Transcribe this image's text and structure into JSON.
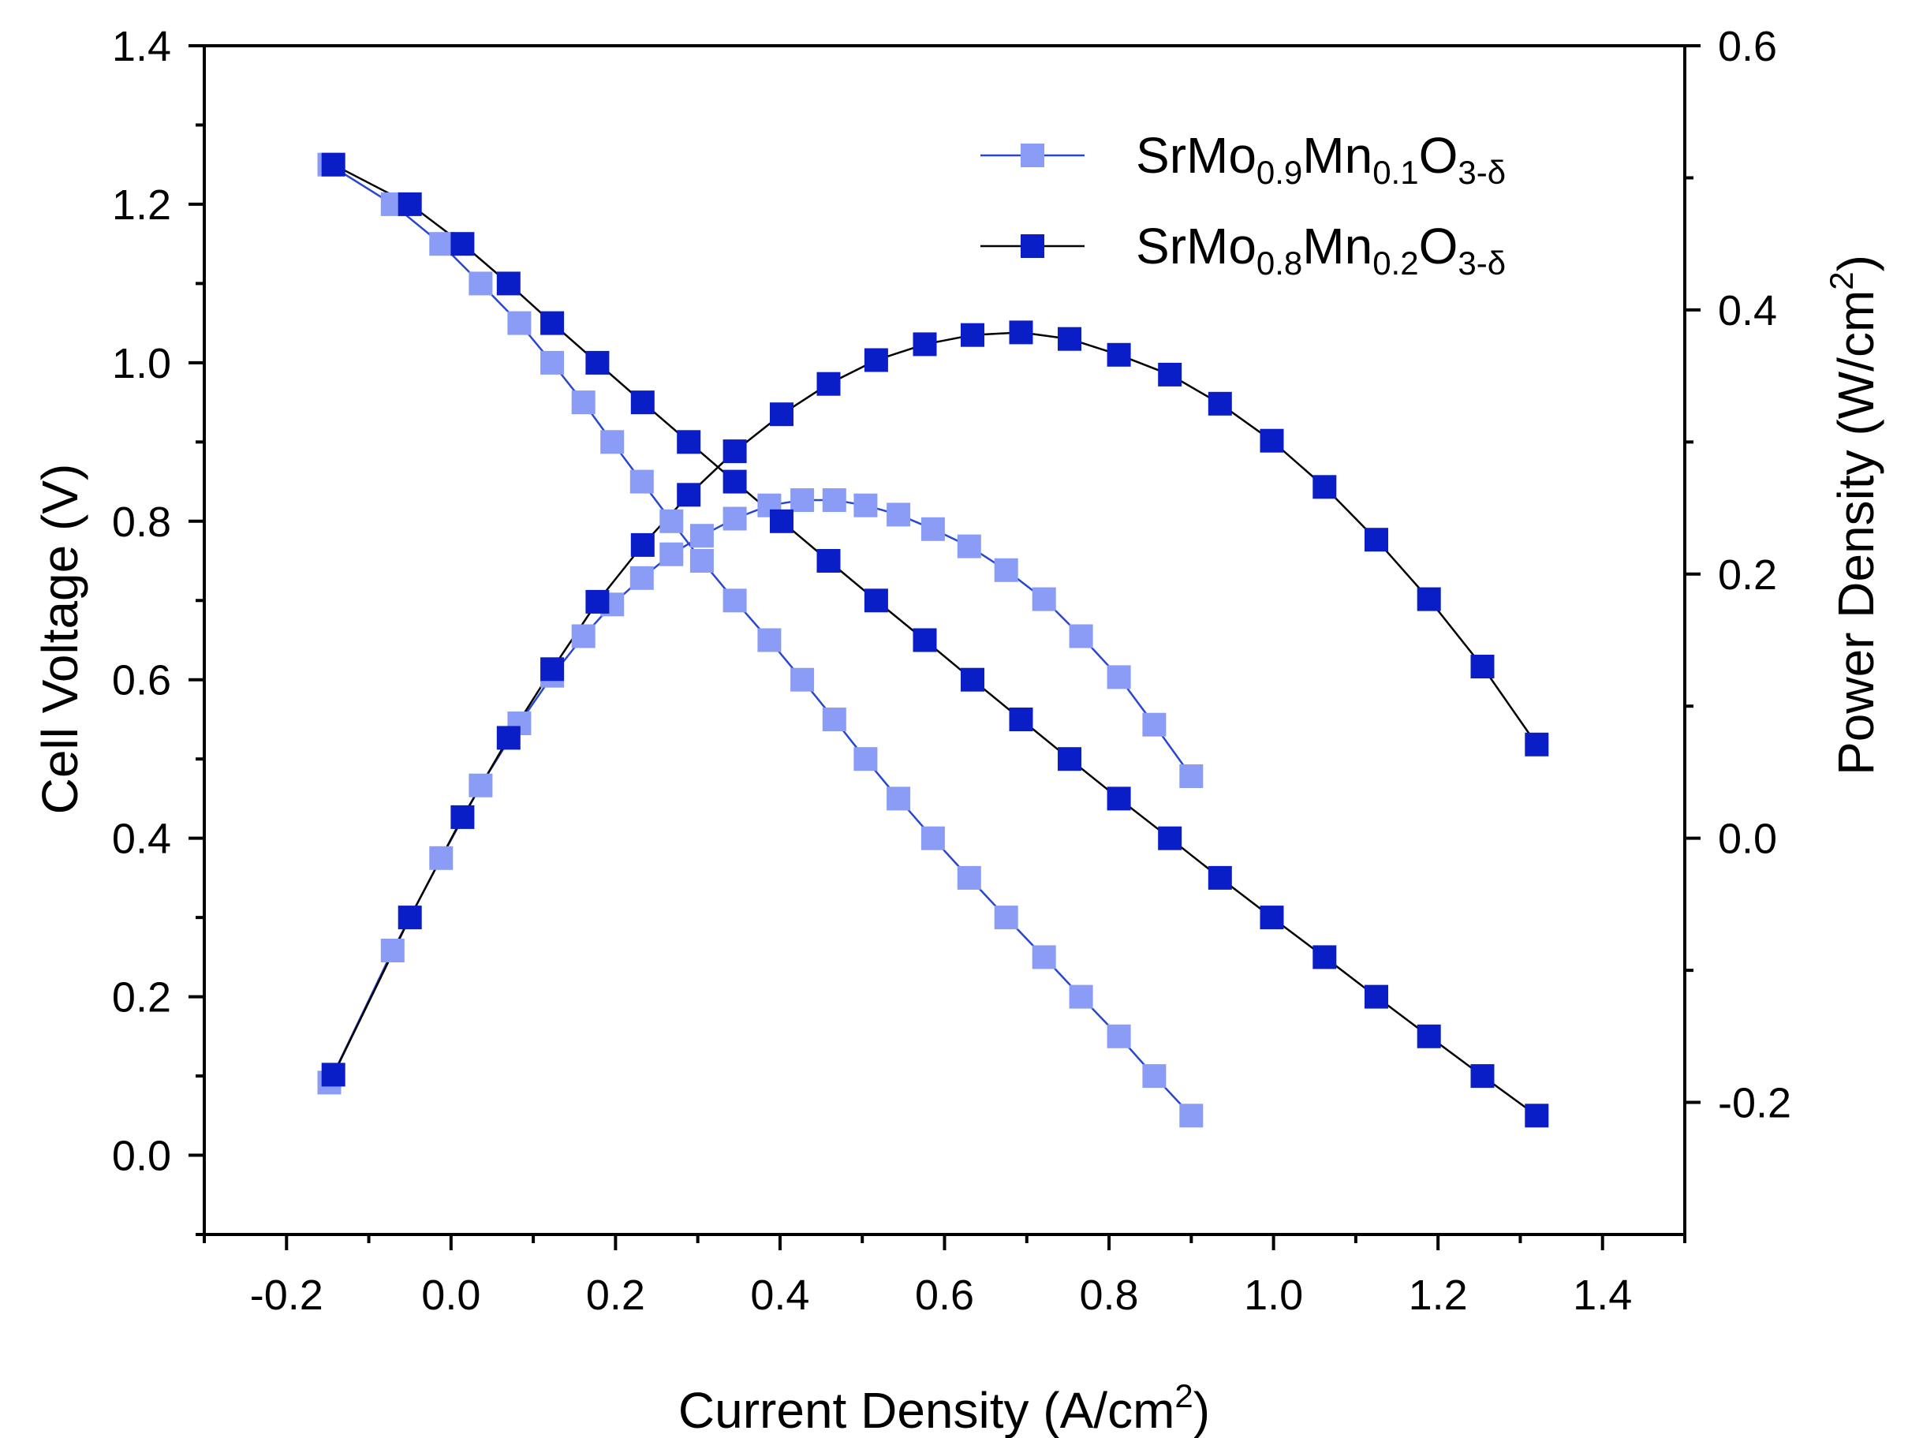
{
  "chart_data": {
    "type": "line",
    "x_label": {
      "main": "Current Density (A/cm",
      "sup": "2",
      "end": ")"
    },
    "y_left_label": "Cell Voltage (V)",
    "y_right_label": {
      "main": "Power Density (W/cm",
      "sup": "2",
      "end": ")"
    },
    "xlim": [
      -0.3,
      1.5
    ],
    "ylim_left": [
      -0.1,
      1.4
    ],
    "ylim_right": [
      -0.3,
      0.6
    ],
    "x_ticks": [
      "-0.2",
      "0.0",
      "0.2",
      "0.4",
      "0.6",
      "0.8",
      "1.0",
      "1.2",
      "1.4"
    ],
    "x_tick_values": [
      -0.2,
      0.0,
      0.2,
      0.4,
      0.6,
      0.8,
      1.0,
      1.2,
      1.4
    ],
    "y_left_ticks": [
      "0.0",
      "0.2",
      "0.4",
      "0.6",
      "0.8",
      "1.0",
      "1.2",
      "1.4"
    ],
    "y_left_tick_values": [
      0.0,
      0.2,
      0.4,
      0.6,
      0.8,
      1.0,
      1.2,
      1.4
    ],
    "y_right_ticks": [
      "-0.2",
      "0.0",
      "0.2",
      "0.4",
      "0.6"
    ],
    "y_right_tick_values": [
      -0.2,
      0.0,
      0.2,
      0.4,
      0.6
    ],
    "legend": [
      {
        "base": "SrMo",
        "s1": "0.9",
        "mid": "Mn",
        "s2": "0.1",
        "end": "O",
        "s3": "3-δ",
        "series_index": 0
      },
      {
        "base": "SrMo",
        "s1": "0.8",
        "mid": "Mn",
        "s2": "0.2",
        "end": "O",
        "s3": "3-δ",
        "series_index": 1
      }
    ],
    "series": [
      {
        "name": "SrMo0.9Mn0.1O3-δ",
        "marker_color": "#8a9cf6",
        "line_color": "#2846d2",
        "voltage": {
          "x": [
            -0.148,
            -0.071,
            -0.012,
            0.036,
            0.083,
            0.123,
            0.161,
            0.196,
            0.232,
            0.268,
            0.305,
            0.345,
            0.387,
            0.427,
            0.466,
            0.504,
            0.544,
            0.586,
            0.63,
            0.675,
            0.721,
            0.766,
            0.812,
            0.855,
            0.9
          ],
          "y": [
            1.25,
            1.2,
            1.15,
            1.1,
            1.05,
            1.0,
            0.95,
            0.9,
            0.85,
            0.8,
            0.75,
            0.7,
            0.65,
            0.6,
            0.55,
            0.5,
            0.45,
            0.4,
            0.35,
            0.3,
            0.25,
            0.2,
            0.15,
            0.1,
            0.05
          ]
        },
        "power": {
          "x": [
            -0.148,
            -0.071,
            -0.012,
            0.036,
            0.083,
            0.123,
            0.161,
            0.196,
            0.232,
            0.268,
            0.305,
            0.345,
            0.387,
            0.427,
            0.466,
            0.504,
            0.544,
            0.586,
            0.63,
            0.675,
            0.721,
            0.766,
            0.812,
            0.855,
            0.9
          ],
          "y": [
            -0.185,
            -0.085,
            -0.015,
            0.04,
            0.087,
            0.123,
            0.153,
            0.177,
            0.197,
            0.215,
            0.229,
            0.242,
            0.252,
            0.256,
            0.256,
            0.252,
            0.245,
            0.234,
            0.221,
            0.203,
            0.181,
            0.153,
            0.122,
            0.086,
            0.047
          ]
        }
      },
      {
        "name": "SrMo0.8Mn0.2O3-δ",
        "marker_color": "#0a1ec8",
        "line_color": "#000000",
        "voltage": {
          "x": [
            -0.143,
            -0.05,
            0.014,
            0.07,
            0.123,
            0.178,
            0.233,
            0.289,
            0.345,
            0.402,
            0.459,
            0.517,
            0.576,
            0.634,
            0.693,
            0.752,
            0.812,
            0.874,
            0.935,
            0.998,
            1.062,
            1.125,
            1.189,
            1.254,
            1.32
          ],
          "y": [
            1.25,
            1.2,
            1.15,
            1.1,
            1.05,
            1.0,
            0.95,
            0.9,
            0.85,
            0.8,
            0.75,
            0.7,
            0.65,
            0.6,
            0.55,
            0.5,
            0.45,
            0.4,
            0.35,
            0.3,
            0.25,
            0.2,
            0.15,
            0.1,
            0.05
          ]
        },
        "power": {
          "x": [
            -0.143,
            -0.05,
            0.014,
            0.07,
            0.123,
            0.178,
            0.233,
            0.289,
            0.345,
            0.402,
            0.459,
            0.517,
            0.576,
            0.634,
            0.693,
            0.752,
            0.812,
            0.874,
            0.935,
            0.998,
            1.062,
            1.125,
            1.189,
            1.254,
            1.32
          ],
          "y": [
            -0.179,
            -0.06,
            0.016,
            0.076,
            0.128,
            0.179,
            0.222,
            0.26,
            0.293,
            0.321,
            0.344,
            0.362,
            0.374,
            0.381,
            0.383,
            0.378,
            0.366,
            0.351,
            0.329,
            0.301,
            0.266,
            0.226,
            0.181,
            0.13,
            0.071
          ]
        }
      }
    ]
  }
}
